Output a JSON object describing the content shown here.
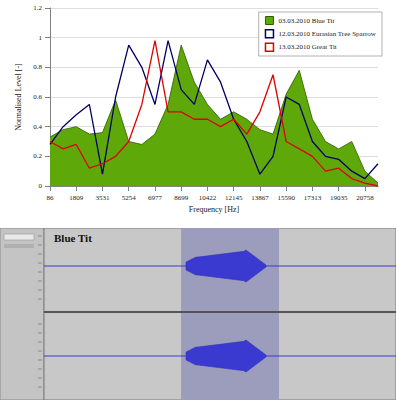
{
  "chart_data": {
    "type": "line",
    "xlabel": "Frequency [Hz]",
    "ylabel": "Normalised Level [-]",
    "x": [
      86,
      947,
      1809,
      2670,
      3531,
      4392,
      5254,
      6115,
      6977,
      7838,
      8699,
      9561,
      10422,
      11283,
      12145,
      13006,
      13867,
      14728,
      15590,
      16451,
      17313,
      18174,
      19035,
      19897,
      20758,
      21619
    ],
    "series": [
      {
        "name": "03.03.2010 Blue Tit",
        "color": "#5fa80a",
        "type": "area",
        "values": [
          0.33,
          0.38,
          0.4,
          0.35,
          0.36,
          0.58,
          0.3,
          0.28,
          0.35,
          0.55,
          0.95,
          0.7,
          0.55,
          0.45,
          0.5,
          0.45,
          0.38,
          0.35,
          0.62,
          0.78,
          0.45,
          0.3,
          0.25,
          0.3,
          0.1,
          0.02
        ]
      },
      {
        "name": "12.03.2010 Eurasian Tree Sparrow",
        "color": "#000066",
        "type": "line",
        "values": [
          0.28,
          0.4,
          0.48,
          0.55,
          0.08,
          0.6,
          0.95,
          0.8,
          0.55,
          0.98,
          0.65,
          0.55,
          0.85,
          0.7,
          0.45,
          0.3,
          0.08,
          0.2,
          0.6,
          0.55,
          0.3,
          0.2,
          0.18,
          0.1,
          0.05,
          0.15
        ]
      },
      {
        "name": "13.03.2010 Great Tit",
        "color": "#e00000",
        "type": "line",
        "values": [
          0.3,
          0.25,
          0.28,
          0.12,
          0.15,
          0.2,
          0.3,
          0.55,
          0.98,
          0.5,
          0.5,
          0.45,
          0.45,
          0.4,
          0.45,
          0.35,
          0.5,
          0.75,
          0.3,
          0.25,
          0.2,
          0.1,
          0.12,
          0.05,
          0.02,
          0.0
        ]
      }
    ],
    "xlim": [
      86,
      21619
    ],
    "xticks": [
      86,
      1809,
      3531,
      5254,
      6977,
      8699,
      10422,
      12145,
      13867,
      15590,
      17313,
      19035,
      20758
    ],
    "ylim": [
      0,
      1.2
    ],
    "yticks": [
      0,
      0.2,
      0.4,
      0.6,
      0.8,
      1,
      1.2
    ],
    "grid": true,
    "legend": "upper right"
  },
  "screenshot": {
    "track_label": "Blue Tit"
  }
}
